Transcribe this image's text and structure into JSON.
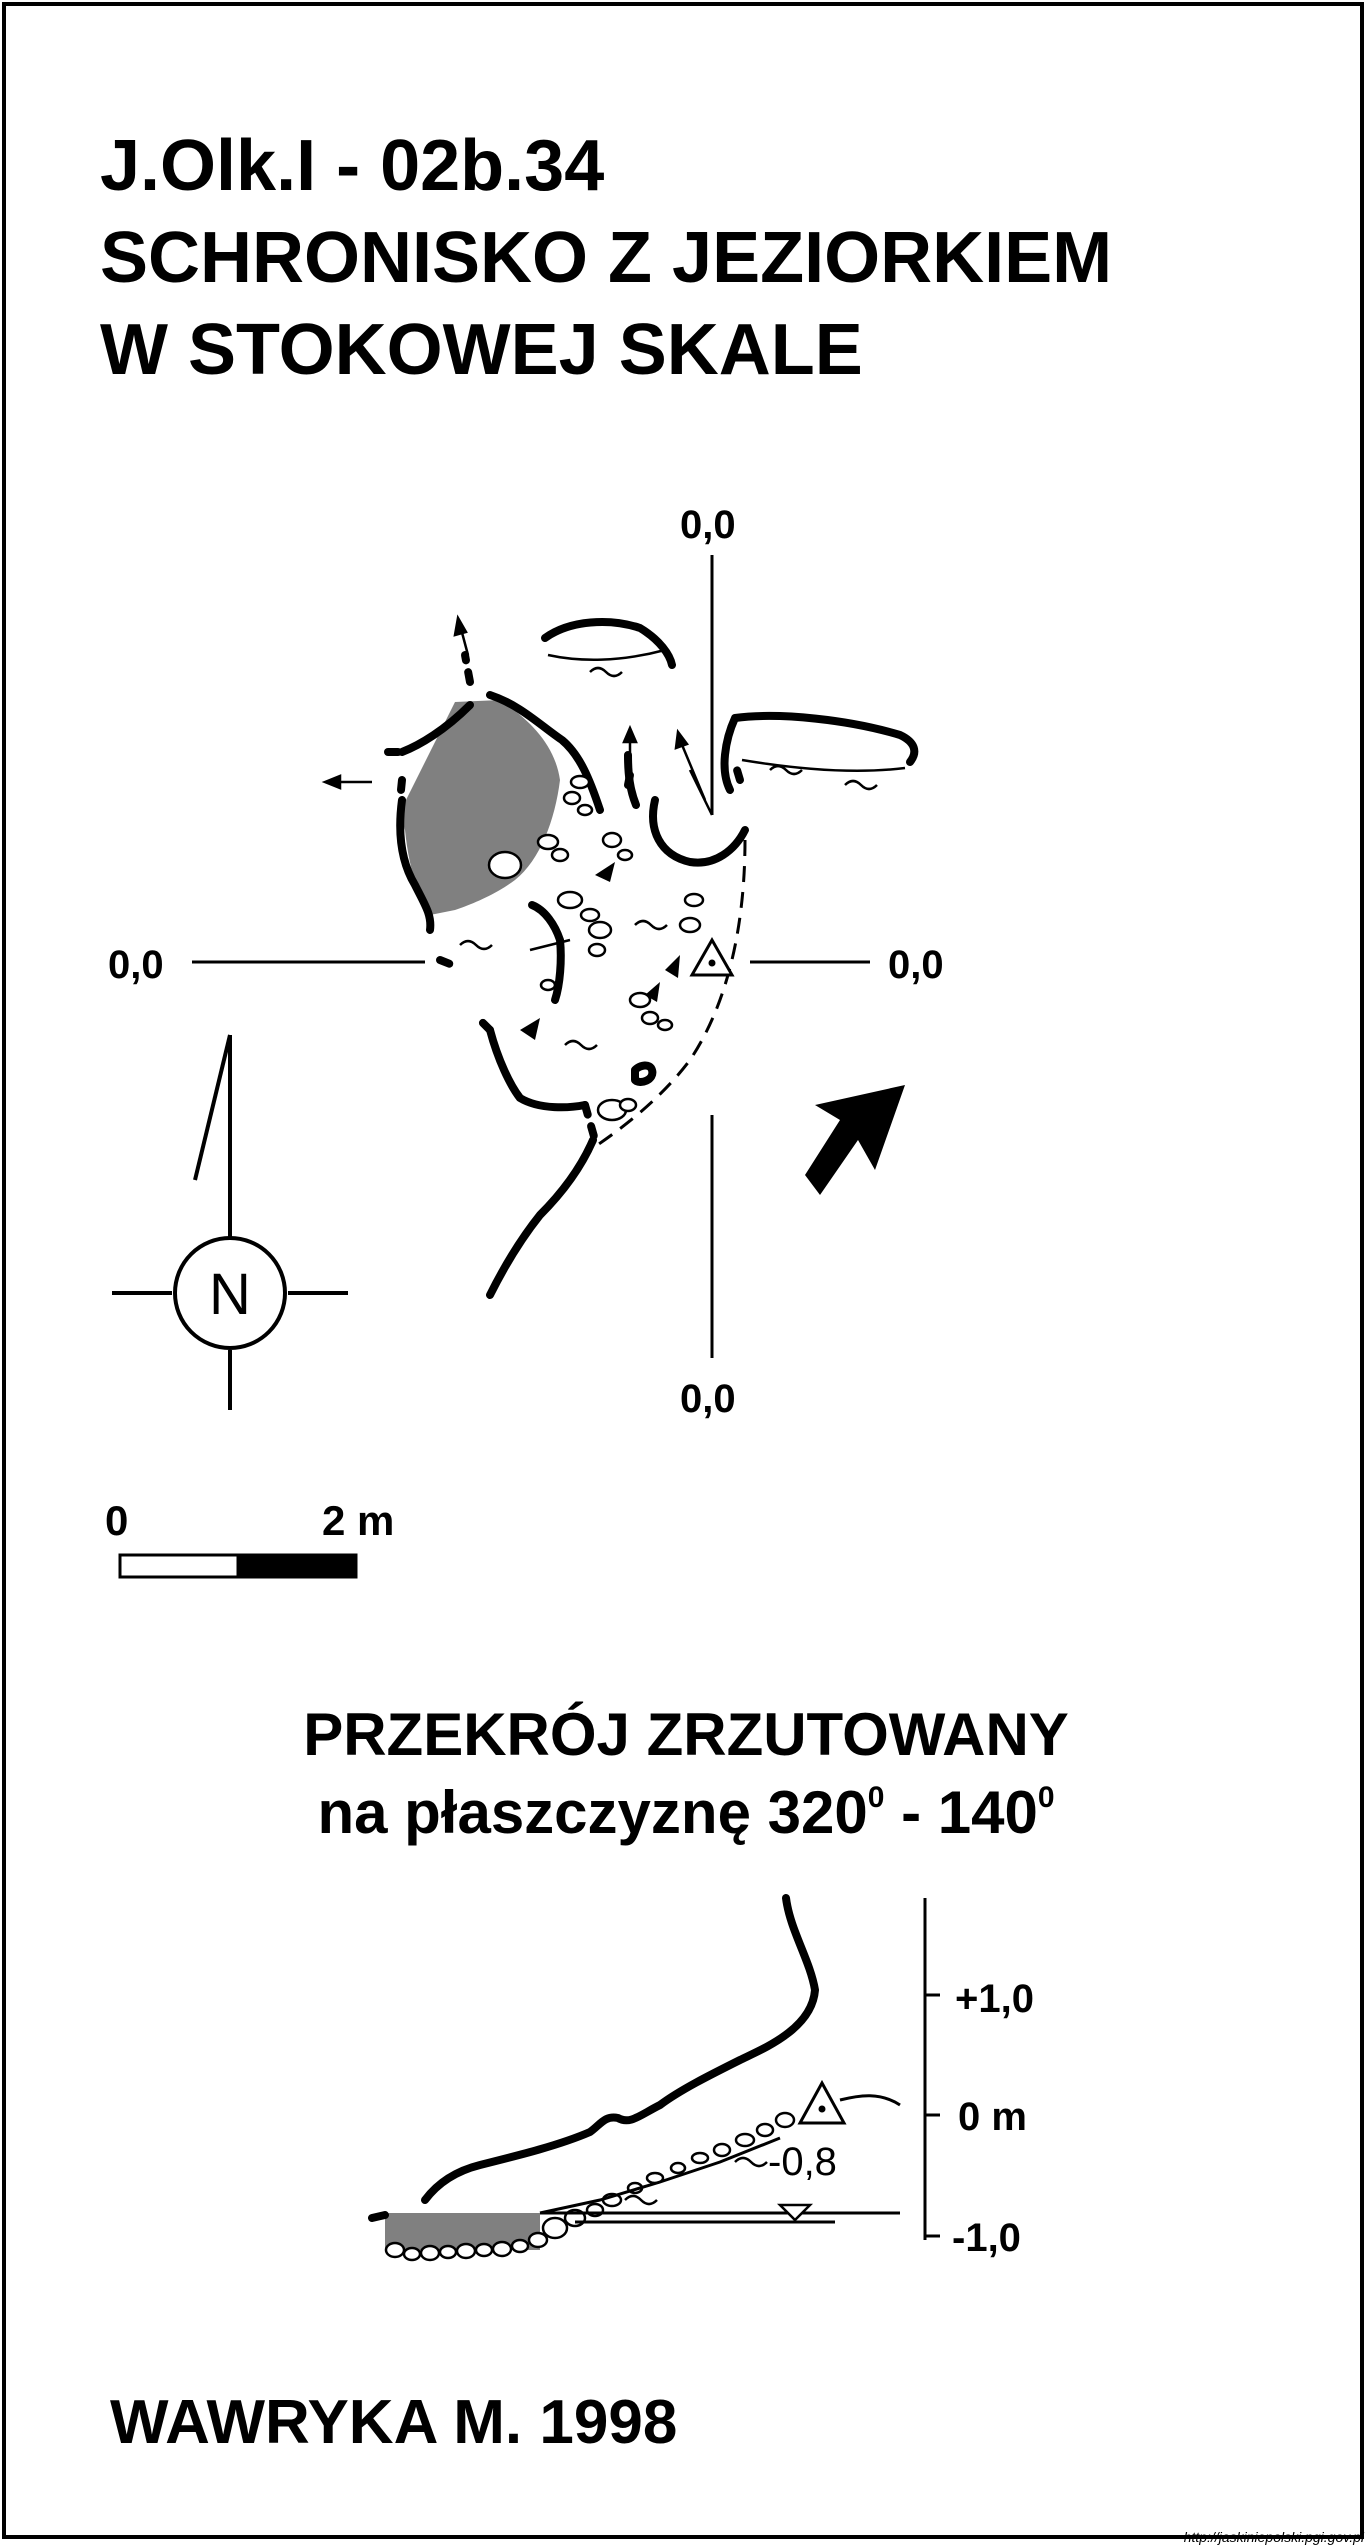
{
  "header": {
    "code": "J.Olk.I - 02b.34",
    "name_line1": "SCHRONISKO Z JEZIORKIEM",
    "name_line2": "W STOKOWEJ SKALE"
  },
  "plan": {
    "axis_top": "0,0",
    "axis_left": "0,0",
    "axis_right": "0,0",
    "axis_bottom": "0,0",
    "north_label": "N",
    "scale_start": "0",
    "scale_end": "2 m"
  },
  "section": {
    "title": "PRZEKRÓJ ZRZUTOWANY",
    "subtitle_text": "na płaszczyznę 320",
    "subtitle_sep": " - 140",
    "degree_mark": "0",
    "scale_plus": "+1,0",
    "scale_zero": "0 m",
    "scale_minus": "-1,0",
    "water_level": "-0,8"
  },
  "footer": {
    "author": "WAWRYKA M. 1998",
    "source_url": "http://jaskiniepolski.pgi.gov.pl"
  },
  "colors": {
    "ink": "#000000",
    "water_fill": "#808080",
    "paper": "#ffffff"
  }
}
